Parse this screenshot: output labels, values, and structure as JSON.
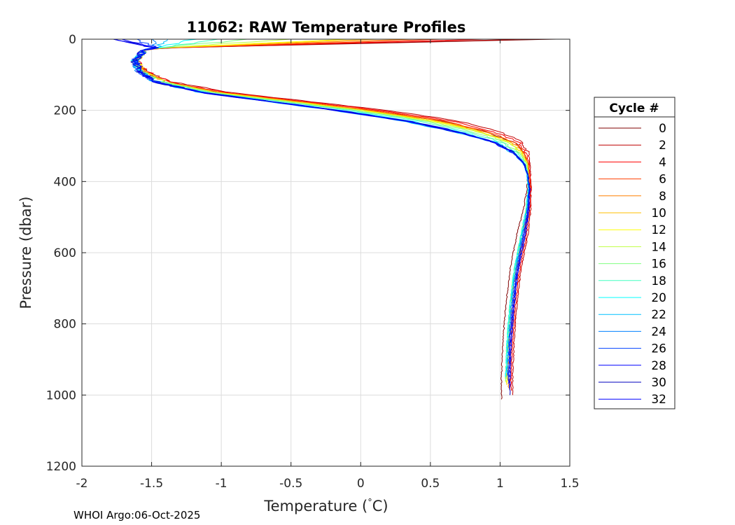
{
  "chart_data": {
    "type": "line",
    "title": "11062: RAW Temperature Profiles",
    "xlabel": "Temperature (°C)",
    "xlabel_parts": [
      "Temperature (",
      "°",
      "C)"
    ],
    "ylabel": "Pressure (dbar)",
    "xlim": [
      -2,
      1.5
    ],
    "ylim": [
      0,
      1200
    ],
    "y_reversed": true,
    "grid": true,
    "x_ticks": [
      -2,
      -1.5,
      -1,
      -0.5,
      0,
      0.5,
      1,
      1.5
    ],
    "x_tick_labels": [
      "-2",
      "-1.5",
      "-1",
      "-0.5",
      "0",
      "0.5",
      "1",
      "1.5"
    ],
    "y_ticks": [
      0,
      200,
      400,
      600,
      800,
      1000,
      1200
    ],
    "y_tick_labels": [
      "0",
      "200",
      "400",
      "600",
      "800",
      "1000",
      "1200"
    ],
    "legend": {
      "title": "Cycle #",
      "placement": "outside-right",
      "entries": [
        "0",
        "2",
        "4",
        "6",
        "8",
        "10",
        "12",
        "14",
        "16",
        "18",
        "20",
        "22",
        "24",
        "26",
        "28",
        "30",
        "32"
      ]
    },
    "reference_profile": {
      "pressure": [
        0,
        15,
        30,
        60,
        90,
        120,
        150,
        180,
        200,
        230,
        260,
        290,
        320,
        350,
        380,
        420,
        480,
        550,
        650,
        750,
        850,
        950,
        1010
      ],
      "temperature": [
        0.9,
        -1.3,
        -1.55,
        -1.62,
        -1.58,
        -1.45,
        -1.1,
        -0.5,
        -0.1,
        0.4,
        0.75,
        1.0,
        1.12,
        1.18,
        1.2,
        1.21,
        1.2,
        1.17,
        1.12,
        1.09,
        1.07,
        1.06,
        1.06
      ]
    },
    "series": [
      {
        "name": "0",
        "color": "#800000",
        "max_pressure": 1015,
        "surface_temp": 1.4,
        "dT_mid": 0.18,
        "shift": -0.05
      },
      {
        "name": "2",
        "color": "#bf0000",
        "max_pressure": 1000,
        "surface_temp": 1.2,
        "dT_mid": 0.3,
        "shift": 0.03
      },
      {
        "name": "4",
        "color": "#ff0000",
        "max_pressure": 990,
        "surface_temp": 0.9,
        "dT_mid": 0.25,
        "shift": 0.02
      },
      {
        "name": "6",
        "color": "#ff4000",
        "max_pressure": 985,
        "surface_temp": 0.6,
        "dT_mid": 0.2,
        "shift": 0.01
      },
      {
        "name": "8",
        "color": "#ff8000",
        "max_pressure": 980,
        "surface_temp": 0.35,
        "dT_mid": 0.17,
        "shift": 0.0
      },
      {
        "name": "10",
        "color": "#ffbf00",
        "max_pressure": 975,
        "surface_temp": 0.1,
        "dT_mid": 0.14,
        "shift": -0.01
      },
      {
        "name": "12",
        "color": "#ffff00",
        "max_pressure": 970,
        "surface_temp": -0.1,
        "dT_mid": 0.12,
        "shift": -0.01
      },
      {
        "name": "14",
        "color": "#bfff40",
        "max_pressure": 965,
        "surface_temp": -0.5,
        "dT_mid": 0.1,
        "shift": -0.02
      },
      {
        "name": "16",
        "color": "#80ff80",
        "max_pressure": 960,
        "surface_temp": -0.8,
        "dT_mid": 0.06,
        "shift": -0.02
      },
      {
        "name": "18",
        "color": "#40ffbf",
        "max_pressure": 955,
        "surface_temp": -1.0,
        "dT_mid": 0.02,
        "shift": -0.02
      },
      {
        "name": "20",
        "color": "#00ffff",
        "max_pressure": 950,
        "surface_temp": -1.2,
        "dT_mid": -0.04,
        "shift": -0.02
      },
      {
        "name": "22",
        "color": "#00bfff",
        "max_pressure": 945,
        "surface_temp": -1.4,
        "dT_mid": -0.1,
        "shift": -0.01
      },
      {
        "name": "24",
        "color": "#0080ff",
        "max_pressure": 950,
        "surface_temp": -1.5,
        "dT_mid": -0.08,
        "shift": -0.01
      },
      {
        "name": "26",
        "color": "#0040ff",
        "max_pressure": 960,
        "surface_temp": -1.6,
        "dT_mid": -0.06,
        "shift": 0.0
      },
      {
        "name": "28",
        "color": "#0000ff",
        "max_pressure": 970,
        "surface_temp": -1.7,
        "dT_mid": -0.05,
        "shift": 0.0
      },
      {
        "name": "30",
        "color": "#0000bf",
        "max_pressure": 1000,
        "surface_temp": -1.75,
        "dT_mid": -0.07,
        "shift": 0.01
      },
      {
        "name": "32",
        "color": "#0000ff",
        "max_pressure": 980,
        "surface_temp": -1.8,
        "dT_mid": -0.09,
        "shift": 0.01
      }
    ]
  },
  "footer": "WHOI Argo:06-Oct-2025"
}
